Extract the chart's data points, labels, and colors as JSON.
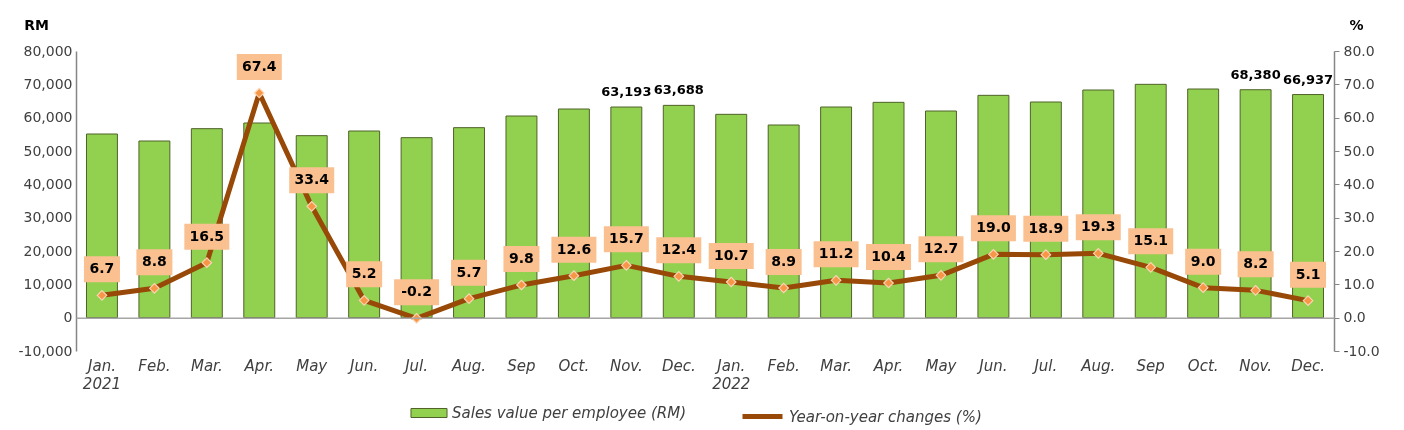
{
  "chart_data": {
    "type": "bar",
    "categories": [
      "Jan. 2021",
      "Feb.",
      "Mar.",
      "Apr.",
      "May",
      "Jun.",
      "Jul.",
      "Aug.",
      "Sep",
      "Oct.",
      "Nov.",
      "Dec.",
      "Jan. 2022",
      "Feb.",
      "Mar.",
      "Apr.",
      "May",
      "Jun.",
      "Jul.",
      "Aug.",
      "Sep",
      "Oct.",
      "Nov.",
      "Dec."
    ],
    "ylabel": "RM",
    "y2label": "%",
    "series": [
      {
        "name": "Sales value per employee (RM)",
        "color": "#92d050",
        "values": [
          55100,
          53000,
          56700,
          58400,
          54600,
          56000,
          54000,
          57000,
          60500,
          62600,
          63193,
          63688,
          61000,
          57800,
          63200,
          64600,
          62000,
          66700,
          64700,
          68300,
          70000,
          68600,
          68380,
          66937
        ],
        "value_labels": [
          null,
          null,
          null,
          null,
          null,
          null,
          null,
          null,
          null,
          null,
          "63,193",
          "63,688",
          null,
          null,
          null,
          null,
          null,
          null,
          null,
          null,
          null,
          null,
          "68,380",
          "66,937"
        ]
      },
      {
        "name": "Year-on-year changes (%)",
        "type": "line",
        "axis": "y2",
        "color": "#984807",
        "marker": "diamond",
        "values": [
          6.7,
          8.8,
          16.5,
          67.4,
          33.4,
          5.2,
          -0.2,
          5.7,
          9.8,
          12.6,
          15.7,
          12.4,
          10.7,
          8.9,
          11.2,
          10.4,
          12.7,
          19.0,
          18.9,
          19.3,
          15.1,
          9.0,
          8.2,
          5.1
        ],
        "value_labels": [
          "6.7",
          "8.8",
          "16.5",
          "67.4",
          "33.4",
          "5.2",
          "-0.2",
          "5.7",
          "9.8",
          "12.6",
          "15.7",
          "12.4",
          "10.7",
          "8.9",
          "11.2",
          "10.4",
          "12.7",
          "19.0",
          "18.9",
          "19.3",
          "15.1",
          "9.0",
          "8.2",
          "5.1"
        ]
      }
    ],
    "ylim": [
      -10000,
      80000
    ],
    "yticks": [
      {
        "value": -10000,
        "label": "-10,000"
      },
      0,
      {
        "value": 10000,
        "label": "10,000"
      },
      {
        "value": 20000,
        "label": "20,000"
      },
      {
        "value": 30000,
        "label": "30,000"
      },
      {
        "value": 40000,
        "label": "40,000"
      },
      {
        "value": 50000,
        "label": "50,000"
      },
      {
        "value": 60000,
        "label": "60,000"
      },
      {
        "value": 70000,
        "label": "70,000"
      },
      {
        "value": 80000,
        "label": "80,000"
      }
    ],
    "y2lim": [
      -10,
      80
    ],
    "y2ticks": [
      {
        "value": -10,
        "label": "-10.0"
      },
      {
        "value": 0,
        "label": "0.0"
      },
      {
        "value": 10,
        "label": "10.0"
      },
      {
        "value": 20,
        "label": "20.0"
      },
      {
        "value": 30,
        "label": "30.0"
      },
      {
        "value": 40,
        "label": "40.0"
      },
      {
        "value": 50,
        "label": "50.0"
      },
      {
        "value": 60,
        "label": "60.0"
      },
      {
        "value": 70,
        "label": "70.0"
      },
      {
        "value": 80,
        "label": "80.0"
      }
    ],
    "legend": "bottom"
  }
}
